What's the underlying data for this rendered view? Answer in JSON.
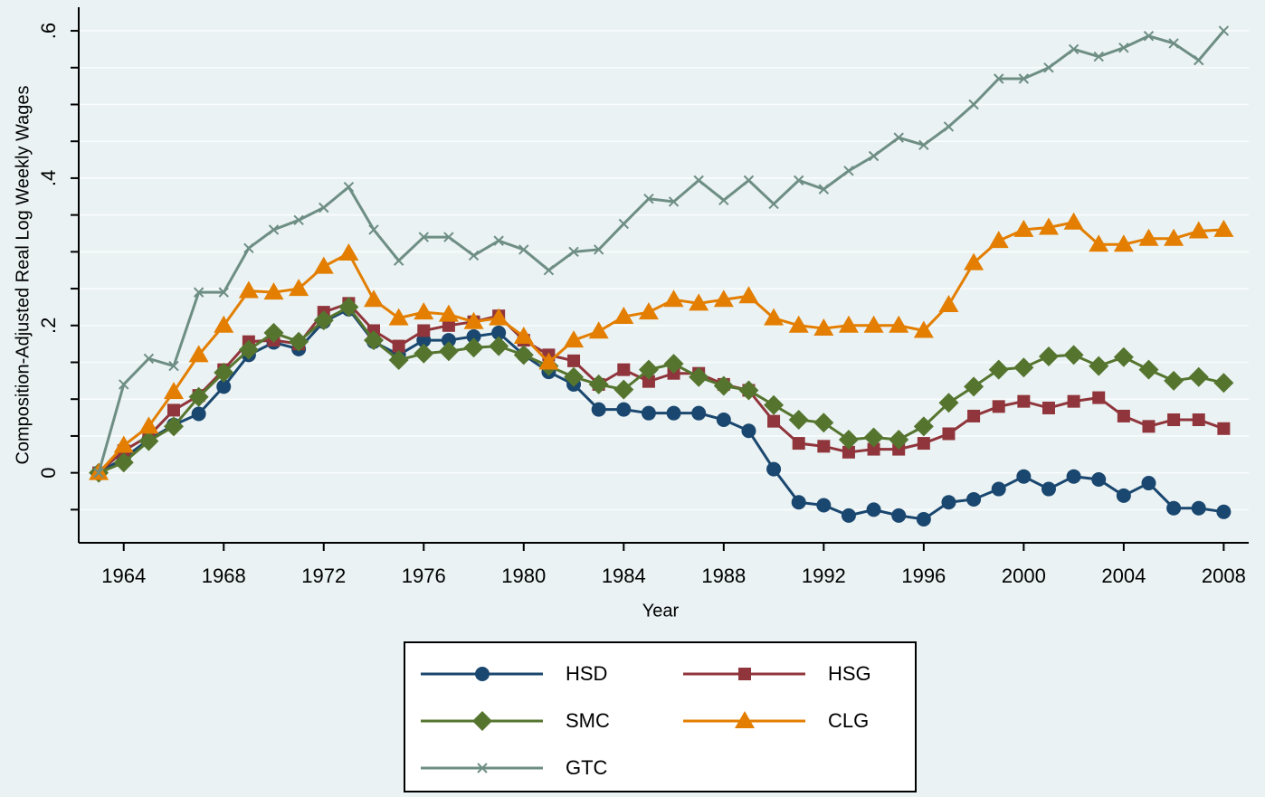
{
  "chart_data": {
    "type": "line",
    "y_label": "Composition-Adjusted Real Log Weekly Wages",
    "x_label": "Year",
    "x": [
      1963,
      1964,
      1965,
      1966,
      1967,
      1968,
      1969,
      1970,
      1971,
      1972,
      1973,
      1974,
      1975,
      1976,
      1977,
      1978,
      1979,
      1980,
      1981,
      1982,
      1983,
      1984,
      1985,
      1986,
      1987,
      1988,
      1989,
      1990,
      1991,
      1992,
      1993,
      1994,
      1995,
      1996,
      1997,
      1998,
      1999,
      2000,
      2001,
      2002,
      2003,
      2004,
      2005,
      2006,
      2007,
      2008
    ],
    "series": [
      {
        "name": "HSD",
        "color": "#1a476f",
        "marker": "circle",
        "values": [
          0,
          0.02,
          0.045,
          0.065,
          0.08,
          0.117,
          0.16,
          0.177,
          0.168,
          0.205,
          0.222,
          0.178,
          0.16,
          0.18,
          0.18,
          0.185,
          0.19,
          0.16,
          0.137,
          0.12,
          0.086,
          0.086,
          0.081,
          0.081,
          0.081,
          0.072,
          0.057,
          0.005,
          -0.04,
          -0.044,
          -0.058,
          -0.05,
          -0.058,
          -0.063,
          -0.04,
          -0.036,
          -0.022,
          -0.005,
          -0.022,
          -0.005,
          -0.009,
          -0.031,
          -0.014,
          -0.048,
          -0.048,
          -0.053
        ]
      },
      {
        "name": "HSG",
        "color": "#90353b",
        "marker": "square",
        "values": [
          0,
          0.03,
          0.05,
          0.085,
          0.105,
          0.14,
          0.178,
          0.18,
          0.175,
          0.218,
          0.23,
          0.193,
          0.172,
          0.193,
          0.2,
          0.205,
          0.213,
          0.18,
          0.16,
          0.152,
          0.12,
          0.14,
          0.124,
          0.135,
          0.135,
          0.12,
          0.112,
          0.07,
          0.04,
          0.036,
          0.028,
          0.032,
          0.032,
          0.04,
          0.053,
          0.077,
          0.09,
          0.097,
          0.088,
          0.097,
          0.102,
          0.077,
          0.063,
          0.072,
          0.072,
          0.06
        ]
      },
      {
        "name": "SMC",
        "color": "#55752f",
        "marker": "diamond",
        "values": [
          0,
          0.014,
          0.043,
          0.063,
          0.103,
          0.136,
          0.167,
          0.19,
          0.178,
          0.207,
          0.225,
          0.18,
          0.153,
          0.162,
          0.165,
          0.17,
          0.172,
          0.16,
          0.145,
          0.13,
          0.12,
          0.113,
          0.14,
          0.148,
          0.13,
          0.118,
          0.112,
          0.092,
          0.072,
          0.068,
          0.045,
          0.048,
          0.045,
          0.063,
          0.095,
          0.117,
          0.14,
          0.143,
          0.158,
          0.16,
          0.145,
          0.157,
          0.14,
          0.125,
          0.13,
          0.122
        ]
      },
      {
        "name": "CLG",
        "color": "#e37e00",
        "marker": "triangle",
        "values": [
          0,
          0.037,
          0.063,
          0.11,
          0.16,
          0.2,
          0.247,
          0.245,
          0.25,
          0.28,
          0.298,
          0.235,
          0.21,
          0.218,
          0.215,
          0.205,
          0.21,
          0.185,
          0.15,
          0.18,
          0.192,
          0.212,
          0.218,
          0.235,
          0.23,
          0.235,
          0.24,
          0.21,
          0.2,
          0.196,
          0.2,
          0.2,
          0.2,
          0.193,
          0.228,
          0.285,
          0.315,
          0.33,
          0.333,
          0.34,
          0.31,
          0.31,
          0.318,
          0.318,
          0.328,
          0.33
        ]
      },
      {
        "name": "GTC",
        "color": "#6e8e84",
        "marker": "x",
        "values": [
          0,
          0.12,
          0.155,
          0.145,
          0.245,
          0.245,
          0.305,
          0.33,
          0.343,
          0.36,
          0.388,
          0.33,
          0.288,
          0.32,
          0.32,
          0.295,
          0.315,
          0.303,
          0.275,
          0.3,
          0.303,
          0.338,
          0.372,
          0.368,
          0.397,
          0.37,
          0.397,
          0.365,
          0.397,
          0.385,
          0.41,
          0.43,
          0.455,
          0.445,
          0.47,
          0.5,
          0.535,
          0.535,
          0.55,
          0.575,
          0.565,
          0.577,
          0.593,
          0.583,
          0.56,
          0.6
        ]
      }
    ],
    "xlim": [
      1962.2,
      2009
    ],
    "xticks": [
      1964,
      1968,
      1972,
      1976,
      1980,
      1984,
      1988,
      1992,
      1996,
      2000,
      2004,
      2008
    ],
    "ylim": [
      -0.095,
      0.632
    ],
    "yticks": [
      0,
      {
        "value": 0.2,
        "label": ".2"
      },
      {
        "value": 0.4,
        "label": ".4"
      },
      {
        "value": 0.6,
        "label": ".6"
      }
    ],
    "minor_yticks": [
      -0.05,
      0.05,
      0.1,
      0.15,
      0.25,
      0.3,
      0.35,
      0.45,
      0.5,
      0.55
    ],
    "grid": true
  }
}
